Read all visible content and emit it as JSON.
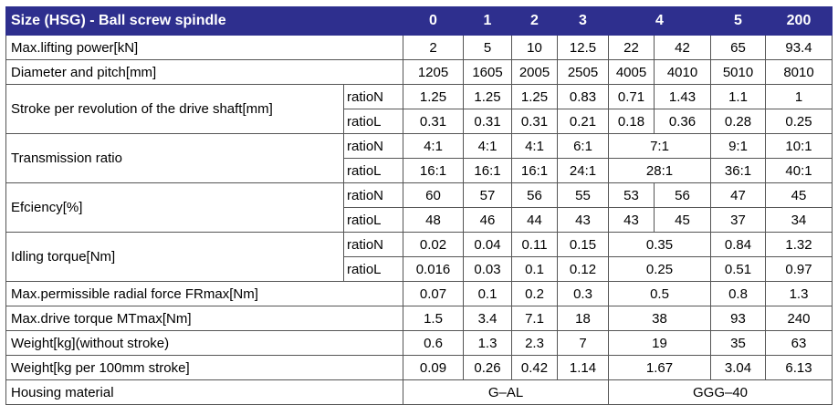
{
  "header": {
    "title": "Size (HSG) - Ball screw spindle",
    "sizes": [
      "0",
      "1",
      "2",
      "3",
      "4",
      "5",
      "200"
    ]
  },
  "rows": {
    "lifting_power": {
      "label": "Max.lifting power[kN]",
      "values": [
        "2",
        "5",
        "10",
        "12.5",
        "22",
        "42",
        "65",
        "93.4"
      ]
    },
    "diameter_pitch": {
      "label": "Diameter and pitch[mm]",
      "values": [
        "1205",
        "1605",
        "2005",
        "2505",
        "4005",
        "4010",
        "5010",
        "8010"
      ]
    },
    "stroke": {
      "label": "Stroke per revolution of the drive shaft[mm]",
      "n_label": "ratioN",
      "n_values": [
        "1.25",
        "1.25",
        "1.25",
        "0.83",
        "0.71",
        "1.43",
        "1.1",
        "1"
      ],
      "l_label": "ratioL",
      "l_values": [
        "0.31",
        "0.31",
        "0.31",
        "0.21",
        "0.18",
        "0.36",
        "0.28",
        "0.25"
      ]
    },
    "transmission": {
      "label": "Transmission ratio",
      "n_label": "ratioN",
      "n_values": [
        "4:1",
        "4:1",
        "4:1",
        "6:1",
        "7:1",
        "9:1",
        "10:1"
      ],
      "l_label": "ratioL",
      "l_values": [
        "16:1",
        "16:1",
        "16:1",
        "24:1",
        "28:1",
        "36:1",
        "40:1"
      ]
    },
    "efficiency": {
      "label": "Efciency[%]",
      "n_label": "ratioN",
      "n_values": [
        "60",
        "57",
        "56",
        "55",
        "53",
        "56",
        "47",
        "45"
      ],
      "l_label": "ratioL",
      "l_values": [
        "48",
        "46",
        "44",
        "43",
        "43",
        "45",
        "37",
        "34"
      ]
    },
    "idling": {
      "label": "Idling torque[Nm]",
      "n_label": "ratioN",
      "n_values": [
        "0.02",
        "0.04",
        "0.11",
        "0.15",
        "0.35",
        "0.84",
        "1.32"
      ],
      "l_label": "ratioL",
      "l_values": [
        "0.016",
        "0.03",
        "0.1",
        "0.12",
        "0.25",
        "0.51",
        "0.97"
      ]
    },
    "radial_force": {
      "label": "Max.permissible radial force FRmax[Nm]",
      "values": [
        "0.07",
        "0.1",
        "0.2",
        "0.3",
        "0.5",
        "0.8",
        "1.3"
      ]
    },
    "drive_torque": {
      "label": "Max.drive torque MTmax[Nm]",
      "values": [
        "1.5",
        "3.4",
        "7.1",
        "18",
        "38",
        "93",
        "240"
      ]
    },
    "weight": {
      "label": "Weight[kg](without stroke)",
      "values": [
        "0.6",
        "1.3",
        "2.3",
        "7",
        "19",
        "35",
        "63"
      ]
    },
    "weight_stroke": {
      "label": "Weight[kg per 100mm stroke]",
      "values": [
        "0.09",
        "0.26",
        "0.42",
        "1.14",
        "1.67",
        "3.04",
        "6.13"
      ]
    },
    "housing": {
      "label": "Housing material",
      "values": [
        "G–AL",
        "GGG–40"
      ]
    }
  }
}
